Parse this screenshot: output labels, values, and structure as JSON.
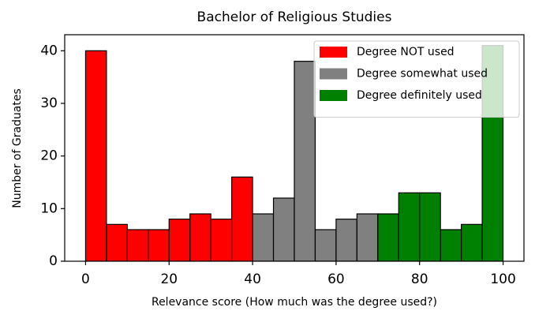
{
  "chart_data": {
    "type": "histogram",
    "title": "Bachelor of Religious Studies",
    "x_label": "Relevance score (How much was the degree used?)",
    "y_label": "Number of Graduates",
    "series": [
      {
        "name": "Degree NOT used",
        "color": "#ff0000",
        "bins": [
          0,
          5,
          10,
          15,
          20,
          25,
          30,
          35,
          40
        ],
        "values": [
          40,
          7,
          6,
          6,
          8,
          9,
          8,
          16
        ]
      },
      {
        "name": "Degree somewhat used",
        "color": "#808080",
        "bins": [
          40,
          45,
          50,
          55,
          60,
          65,
          70
        ],
        "values": [
          9,
          12,
          38,
          6,
          8,
          9
        ]
      },
      {
        "name": "Degree definitely used",
        "color": "#008000",
        "bins": [
          70,
          75,
          80,
          85,
          90,
          95,
          100
        ],
        "values": [
          9,
          13,
          13,
          6,
          7,
          41
        ]
      }
    ],
    "xlim": [
      -5,
      105
    ],
    "xticks": [
      0,
      20,
      40,
      60,
      80,
      100
    ],
    "ylim": [
      0,
      43.05
    ],
    "yticks": [
      0,
      10,
      20,
      30,
      40
    ],
    "legend": "upper right"
  }
}
